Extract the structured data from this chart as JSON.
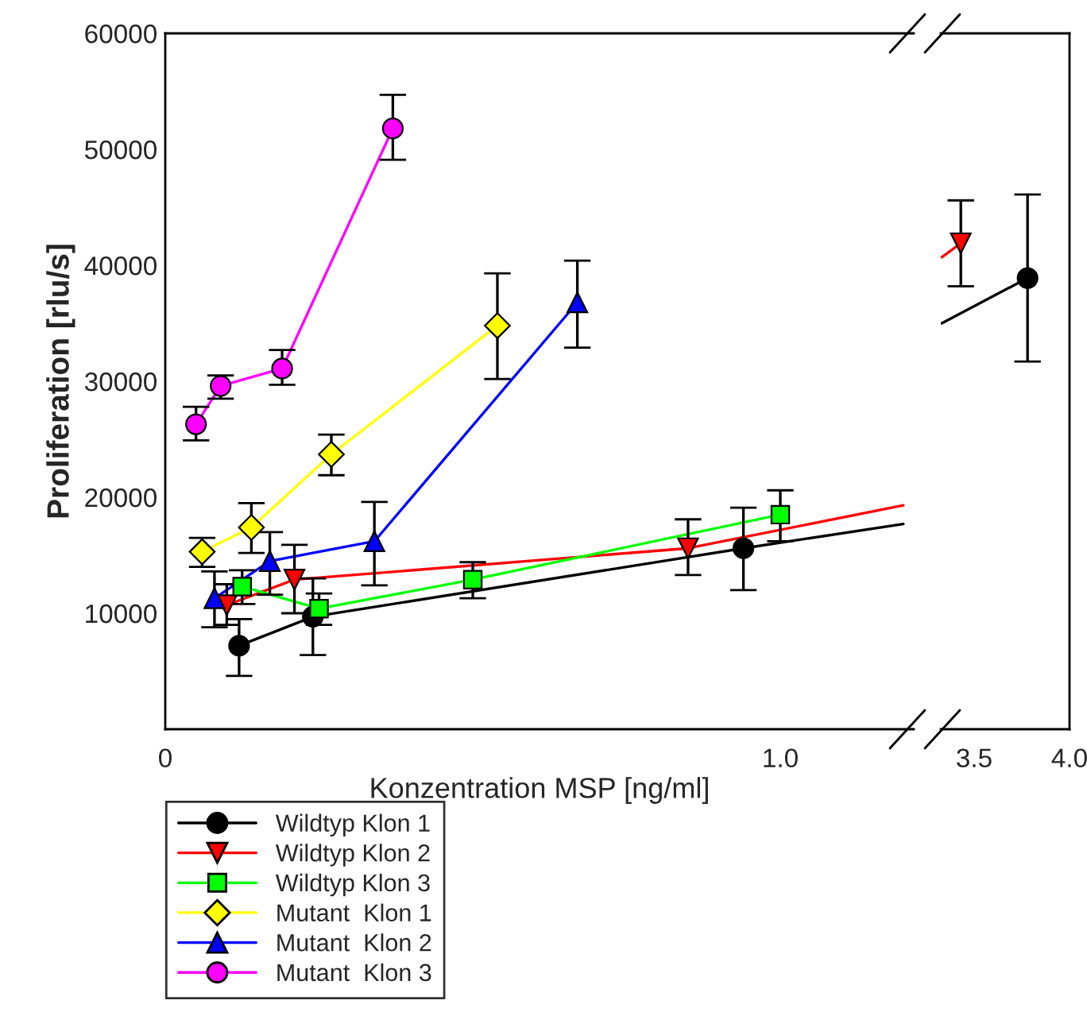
{
  "chart_data": [
    {
      "type": "line",
      "xlabel": "Konzentration MSP [ng/ml]",
      "ylabel": "Proliferation [rlu/s]",
      "xlim": [
        0,
        1.217
      ],
      "xticks": [
        {
          "value": 0,
          "label": "0"
        },
        {
          "value": 1.0,
          "label": "1.0"
        }
      ],
      "ylim": [
        0,
        60000
      ],
      "yticks": [
        10000,
        20000,
        30000,
        40000,
        50000,
        60000
      ],
      "legend": "bottom left",
      "grid": false,
      "series": [
        {
          "name": "Wildtyp Klon 1",
          "color": "#000000",
          "marker": "circle",
          "x": [
            0.12,
            0.24,
            0.94
          ],
          "values": [
            7200,
            9700,
            15600
          ],
          "errors": [
            [
              4600,
              9500
            ],
            [
              6400,
              13000
            ],
            [
              12000,
              19100
            ]
          ]
        },
        {
          "name": "Wildtyp Klon 2",
          "color": "#ff0000",
          "marker": "triangle_down",
          "x": [
            0.1,
            0.21,
            0.85
          ],
          "values": [
            10700,
            12900,
            15600
          ],
          "errors": [
            [
              9000,
              12500
            ],
            [
              10000,
              15900
            ],
            [
              13300,
              18100
            ]
          ]
        },
        {
          "name": "Wildtyp Klon 3",
          "color": "#00ff00",
          "marker": "square",
          "x": [
            0.125,
            0.25,
            0.5,
            1.0
          ],
          "values": [
            12300,
            10400,
            12900,
            18500
          ],
          "errors": [
            [
              10800,
              13700
            ],
            [
              9000,
              11700
            ],
            [
              11300,
              14400
            ],
            [
              16200,
              20600
            ]
          ]
        },
        {
          "name": "Mutant  Klon 1",
          "color": "#ffff00",
          "marker": "diamond",
          "x": [
            0.06,
            0.14,
            0.27,
            0.54
          ],
          "values": [
            15300,
            17400,
            23700,
            34800
          ],
          "errors": [
            [
              14000,
              16500
            ],
            [
              15200,
              19500
            ],
            [
              21900,
              25400
            ],
            [
              30200,
              39300
            ]
          ]
        },
        {
          "name": "Mutant  Klon 2",
          "color": "#0000ff",
          "marker": "triangle",
          "x": [
            0.08,
            0.17,
            0.34,
            0.67
          ],
          "values": [
            11300,
            14500,
            16200,
            36800
          ],
          "errors": [
            [
              8800,
              13600
            ],
            [
              11600,
              17000
            ],
            [
              12400,
              19600
            ],
            [
              32900,
              40400
            ]
          ]
        },
        {
          "name": "Mutant  Klon 3",
          "color": "#ff00ff",
          "marker": "circle",
          "x": [
            0.05,
            0.09,
            0.19,
            0.37
          ],
          "values": [
            26300,
            29600,
            31100,
            51800
          ],
          "errors": [
            [
              24900,
              27800
            ],
            [
              28500,
              30500
            ],
            [
              29700,
              32700
            ],
            [
              49100,
              54700
            ]
          ]
        },
        {
          "type": "line",
          "color": "#ff0000",
          "marker": "none",
          "x": [
            0.85,
            1.2
          ],
          "values": [
            15600,
            19300
          ]
        },
        {
          "type": "line",
          "color": "#000000",
          "marker": "none",
          "x": [
            0.94,
            1.2
          ],
          "values": [
            15600,
            17700
          ]
        }
      ]
    },
    {
      "type": "line",
      "xlim": [
        3.325,
        4.0
      ],
      "xticks": [
        3.5,
        {
          "value": 4.0,
          "label": "4.0"
        }
      ],
      "ylim": [
        0,
        60000
      ],
      "yticks": [
        0,
        10000,
        20000,
        30000,
        40000,
        50000,
        60000
      ],
      "tick_labels": "x",
      "grid": false,
      "series": [
        {
          "type": "line",
          "color": "#ff0000",
          "marker": "none",
          "x": [
            3.33,
            3.43
          ],
          "values": [
            40700,
            41900
          ]
        },
        {
          "type": "line",
          "color": "#000000",
          "marker": "none",
          "x": [
            3.33,
            3.78
          ],
          "values": [
            35000,
            38900
          ]
        },
        {
          "color": "#ff0000",
          "marker": "triangle_down",
          "x": [
            3.43
          ],
          "values": [
            41900
          ],
          "errors": [
            [
              38200,
              45600
            ]
          ]
        },
        {
          "color": "#000000",
          "marker": "circle",
          "x": [
            3.78
          ],
          "values": [
            38900
          ],
          "errors": [
            [
              31700,
              46100
            ]
          ]
        }
      ]
    }
  ]
}
